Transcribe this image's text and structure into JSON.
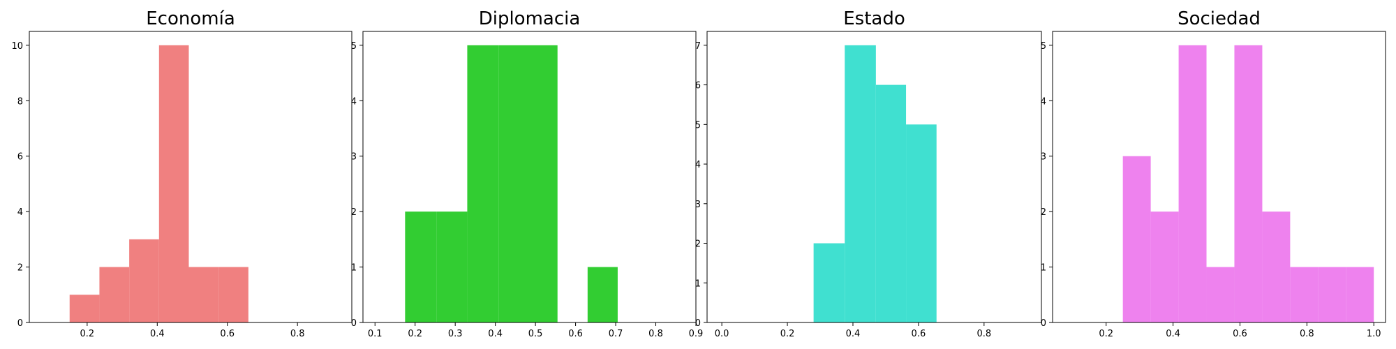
{
  "chart_data": [
    {
      "type": "bar",
      "title": "Economía",
      "color": "#F08080",
      "xlim": [
        0.035,
        0.955
      ],
      "ylim": [
        0,
        10.5
      ],
      "xticks": [
        "0.2",
        "0.4",
        "0.6",
        "0.8"
      ],
      "yticks": [
        "0",
        "2",
        "4",
        "6",
        "8",
        "10"
      ],
      "bins": [
        {
          "x0": 0.15,
          "x1": 0.235,
          "count": 1
        },
        {
          "x0": 0.235,
          "x1": 0.32,
          "count": 2
        },
        {
          "x0": 0.32,
          "x1": 0.405,
          "count": 3
        },
        {
          "x0": 0.405,
          "x1": 0.49,
          "count": 10
        },
        {
          "x0": 0.49,
          "x1": 0.575,
          "count": 2
        },
        {
          "x0": 0.575,
          "x1": 0.66,
          "count": 2
        }
      ]
    },
    {
      "type": "bar",
      "title": "Diplomacia",
      "color": "#32CD32",
      "xlim": [
        0.07,
        0.9
      ],
      "ylim": [
        0,
        5.25
      ],
      "xticks": [
        "0.1",
        "0.2",
        "0.3",
        "0.4",
        "0.5",
        "0.6",
        "0.7",
        "0.8",
        "0.9"
      ],
      "yticks": [
        "0",
        "1",
        "2",
        "3",
        "4",
        "5"
      ],
      "bins": [
        {
          "x0": 0.175,
          "x1": 0.253,
          "count": 2
        },
        {
          "x0": 0.253,
          "x1": 0.33,
          "count": 2
        },
        {
          "x0": 0.33,
          "x1": 0.408,
          "count": 5
        },
        {
          "x0": 0.408,
          "x1": 0.485,
          "count": 5
        },
        {
          "x0": 0.485,
          "x1": 0.555,
          "count": 5
        },
        {
          "x0": 0.63,
          "x1": 0.705,
          "count": 1
        }
      ]
    },
    {
      "type": "bar",
      "title": "Estado",
      "color": "#40E0D0",
      "xlim": [
        -0.045,
        0.975
      ],
      "ylim": [
        0,
        7.35
      ],
      "xticks": [
        "0.0",
        "0.2",
        "0.4",
        "0.6",
        "0.8"
      ],
      "yticks": [
        "0",
        "1",
        "2",
        "3",
        "4",
        "5",
        "6",
        "7"
      ],
      "bins": [
        {
          "x0": 0.28,
          "x1": 0.375,
          "count": 2
        },
        {
          "x0": 0.375,
          "x1": 0.47,
          "count": 7
        },
        {
          "x0": 0.47,
          "x1": 0.562,
          "count": 6
        },
        {
          "x0": 0.562,
          "x1": 0.655,
          "count": 5
        }
      ]
    },
    {
      "type": "bar",
      "title": "Sociedad",
      "color": "#EE82EE",
      "xlim": [
        0.04,
        1.035
      ],
      "ylim": [
        0,
        5.25
      ],
      "xticks": [
        "0.2",
        "0.4",
        "0.6",
        "0.8",
        "1.0"
      ],
      "yticks": [
        "0",
        "1",
        "2",
        "3",
        "4",
        "5"
      ],
      "bins": [
        {
          "x0": 0.25,
          "x1": 0.3333,
          "count": 3
        },
        {
          "x0": 0.3333,
          "x1": 0.4167,
          "count": 2
        },
        {
          "x0": 0.4167,
          "x1": 0.5,
          "count": 5
        },
        {
          "x0": 0.5,
          "x1": 0.5833,
          "count": 1
        },
        {
          "x0": 0.5833,
          "x1": 0.6667,
          "count": 5
        },
        {
          "x0": 0.6667,
          "x1": 0.75,
          "count": 2
        },
        {
          "x0": 0.75,
          "x1": 0.8333,
          "count": 1
        },
        {
          "x0": 0.8333,
          "x1": 0.9167,
          "count": 1
        },
        {
          "x0": 0.9167,
          "x1": 1.0,
          "count": 1
        }
      ]
    }
  ]
}
